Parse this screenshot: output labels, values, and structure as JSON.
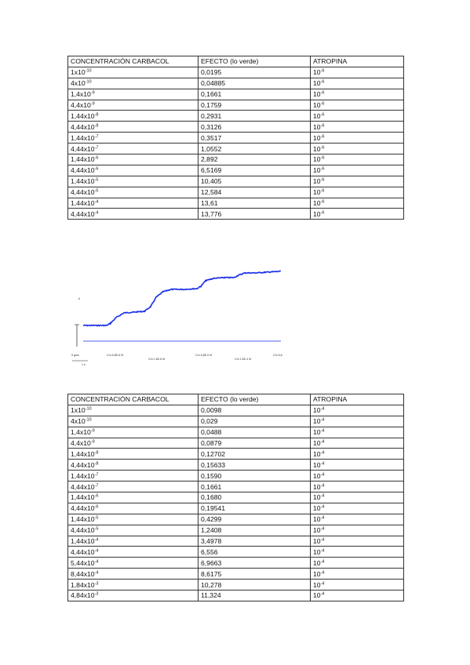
{
  "table1": {
    "headers": [
      "CONCENTRACIÓN CARBACOL",
      "EFECTO (lo verde)",
      "ATROPINA"
    ],
    "rows": [
      {
        "base": "1x10",
        "exp": "-10",
        "effect": "0,0195",
        "atr_base": "10",
        "atr_exp": "-6"
      },
      {
        "base": "4x10",
        "exp": "-10",
        "effect": "0,04885",
        "atr_base": "10",
        "atr_exp": "-6"
      },
      {
        "base": "1,4x10",
        "exp": "-9",
        "effect": "0,1661",
        "atr_base": "10",
        "atr_exp": "-6"
      },
      {
        "base": "4,4x10",
        "exp": "-9",
        "effect": "0,1759",
        "atr_base": "10",
        "atr_exp": "-6"
      },
      {
        "base": "1,44x10",
        "exp": "-8",
        "effect": "0,2931",
        "atr_base": "10",
        "atr_exp": "-6"
      },
      {
        "base": "4,44x10",
        "exp": "-8",
        "effect": "0,3126",
        "atr_base": "10",
        "atr_exp": "-6"
      },
      {
        "base": "1,44x10",
        "exp": "-7",
        "effect": "0,3517",
        "atr_base": "10",
        "atr_exp": "-6"
      },
      {
        "base": "4,44x10",
        "exp": "-7",
        "effect": "1,0552",
        "atr_base": "10",
        "atr_exp": "-6"
      },
      {
        "base": "1,44x10",
        "exp": "-6",
        "effect": "2,892",
        "atr_base": "10",
        "atr_exp": "-6"
      },
      {
        "base": "4,44x10",
        "exp": "-6",
        "effect": "6,5169",
        "atr_base": "10",
        "atr_exp": "-6"
      },
      {
        "base": "1,44x10",
        "exp": "-5",
        "effect": "10,405",
        "atr_base": "10",
        "atr_exp": "-6"
      },
      {
        "base": "4,44x10",
        "exp": "-5",
        "effect": "12,584",
        "atr_base": "10",
        "atr_exp": "-6"
      },
      {
        "base": "1,44x10",
        "exp": "-4",
        "effect": "13,61",
        "atr_base": "10",
        "atr_exp": "-6"
      },
      {
        "base": "4,44x10",
        "exp": "-4",
        "effect": "13,776",
        "atr_base": "10",
        "atr_exp": "-6"
      }
    ]
  },
  "figure": {
    "trace_color": "#1a2ee8",
    "scale_y_label": "5 gms",
    "scale_x_label": "1 s",
    "marker_label": "#",
    "dose_labels": [
      "Cm 6,8E-6 M",
      "Cm 1,6E-6 M",
      "Cm 6,8E-5 M",
      "Cm 1,6E-4 M",
      "Cm 6,8"
    ]
  },
  "table2": {
    "headers": [
      "CONCENTRACIÓN CARBACOL",
      "EFECTO (lo verde)",
      "ATROPINA"
    ],
    "rows": [
      {
        "base": "1x10",
        "exp": "-10",
        "effect": "0,0098",
        "atr_base": "10",
        "atr_exp": "-4"
      },
      {
        "base": "4x10",
        "exp": "-10",
        "effect": "0,029",
        "atr_base": "10",
        "atr_exp": "-4"
      },
      {
        "base": "1,4x10",
        "exp": "-9",
        "effect": "0,0488",
        "atr_base": "10",
        "atr_exp": "-4"
      },
      {
        "base": "4,4x10",
        "exp": "-9",
        "effect": "0,0879",
        "atr_base": "10",
        "atr_exp": "-4"
      },
      {
        "base": "1,44x10",
        "exp": "-8",
        "effect": "0,12702",
        "atr_base": "10",
        "atr_exp": "-4"
      },
      {
        "base": "4,44x10",
        "exp": "-8",
        "effect": "0,15633",
        "atr_base": "10",
        "atr_exp": "-4"
      },
      {
        "base": "1,44x10",
        "exp": "-7",
        "effect": "0,1590",
        "atr_base": "10",
        "atr_exp": "-4"
      },
      {
        "base": "4,44x10",
        "exp": "-7",
        "effect": "0,1661",
        "atr_base": "10",
        "atr_exp": "-4"
      },
      {
        "base": "1,44x10",
        "exp": "-6",
        "effect": "0,1680",
        "atr_base": "10",
        "atr_exp": "-4"
      },
      {
        "base": "4,44x10",
        "exp": "-6",
        "effect": "0,19541",
        "atr_base": "10",
        "atr_exp": "-4"
      },
      {
        "base": "1,44x10",
        "exp": "-5",
        "effect": "0,4299",
        "atr_base": "10",
        "atr_exp": "-4"
      },
      {
        "base": "4,44x10",
        "exp": "-5",
        "effect": "1,2408",
        "atr_base": "10",
        "atr_exp": "-4"
      },
      {
        "base": "1,44x10",
        "exp": "-4",
        "effect": "3,4978",
        "atr_base": "10",
        "atr_exp": "-4"
      },
      {
        "base": "4,44x10",
        "exp": "-4",
        "effect": "6,556",
        "atr_base": "10",
        "atr_exp": "-4"
      },
      {
        "base": "5,44x10",
        "exp": "-4",
        "effect": "6,9663",
        "atr_base": "10",
        "atr_exp": "-4"
      },
      {
        "base": "8,44x10",
        "exp": "-4",
        "effect": "8,6175",
        "atr_base": "10",
        "atr_exp": "-4"
      },
      {
        "base": "1,84x10",
        "exp": "-3",
        "effect": "10,278",
        "atr_base": "10",
        "atr_exp": "-4"
      },
      {
        "base": "4,84x10",
        "exp": "-3",
        "effect": "11,324",
        "atr_base": "10",
        "atr_exp": "-4"
      }
    ]
  }
}
